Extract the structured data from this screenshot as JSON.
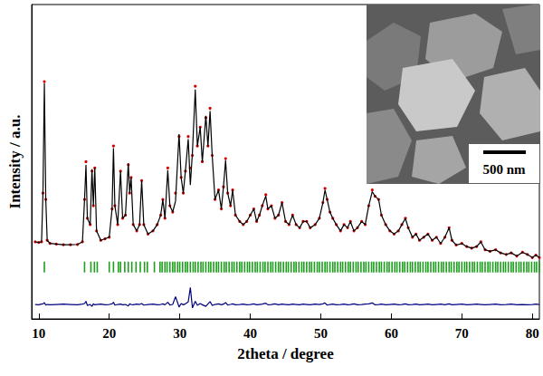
{
  "chart_data": {
    "type": "scatter",
    "xlabel": "2theta / degree",
    "ylabel": "Intensity / a.u.",
    "xlim": [
      9,
      81
    ],
    "xticks": [
      10,
      20,
      30,
      40,
      50,
      60,
      70,
      80
    ],
    "ylim": [
      0,
      100
    ],
    "tick_labels": "x",
    "grid": false,
    "annotations": [
      {
        "text": "500 nm"
      }
    ],
    "x": [
      9.5,
      10.0,
      10.4,
      10.6,
      10.8,
      11.0,
      11.2,
      11.6,
      12.5,
      13.5,
      14.5,
      15.5,
      16.2,
      16.5,
      16.7,
      16.9,
      17.3,
      17.55,
      17.75,
      17.95,
      18.2,
      18.8,
      19.4,
      20.0,
      20.4,
      20.6,
      20.8,
      21.2,
      21.6,
      21.9,
      22.3,
      22.7,
      22.9,
      23.1,
      23.4,
      23.9,
      24.3,
      24.6,
      24.9,
      25.5,
      26.2,
      26.8,
      27.3,
      27.6,
      27.9,
      28.3,
      28.6,
      29.0,
      29.4,
      29.9,
      30.2,
      30.5,
      30.8,
      31.2,
      31.5,
      31.8,
      32.2,
      32.5,
      32.9,
      33.2,
      33.7,
      34.0,
      34.3,
      34.6,
      35.0,
      35.5,
      35.9,
      36.2,
      36.5,
      36.8,
      37.2,
      37.5,
      37.9,
      38.5,
      39.0,
      39.5,
      40.0,
      40.5,
      40.9,
      41.3,
      41.7,
      42.2,
      42.5,
      43.0,
      43.5,
      44.0,
      44.5,
      45.0,
      45.5,
      46.0,
      46.5,
      47.0,
      47.5,
      48.0,
      48.5,
      49.2,
      49.8,
      50.3,
      50.6,
      50.9,
      51.3,
      51.7,
      52.2,
      52.8,
      53.3,
      53.8,
      54.2,
      54.7,
      55.2,
      55.8,
      56.3,
      56.8,
      57.3,
      57.7,
      58.2,
      58.6,
      59.2,
      59.8,
      60.4,
      61.0,
      61.5,
      62.0,
      62.4,
      63.0,
      63.5,
      64.0,
      64.6,
      65.2,
      65.8,
      66.4,
      67.0,
      67.6,
      68.2,
      68.6,
      69.2,
      70.0,
      70.7,
      71.4,
      72.1,
      72.7,
      73.3,
      74.0,
      74.8,
      75.5,
      76.3,
      77.0,
      77.8,
      78.6,
      79.3,
      80.0,
      80.5,
      81.0
    ],
    "series": [
      {
        "type": "scatter",
        "marker": "circle",
        "color": "#d40000",
        "values": [
          24.5,
          24.3,
          24.5,
          40,
          75.5,
          38,
          25,
          24,
          23.8,
          23.6,
          23.6,
          23.7,
          24.5,
          38,
          50,
          32,
          30,
          47,
          36,
          48,
          28,
          25,
          25.5,
          26,
          35,
          55,
          36,
          30,
          47,
          32,
          33,
          49,
          40,
          45,
          30,
          28,
          30,
          44,
          30,
          27,
          28,
          30,
          33,
          38,
          32,
          48,
          36,
          34,
          40,
          58,
          45,
          40,
          47,
          58,
          48,
          52,
          74,
          55,
          61,
          50,
          64,
          55,
          67,
          52,
          38,
          41,
          35,
          42,
          51,
          40,
          36,
          41,
          33,
          31,
          30,
          31,
          33,
          35,
          31,
          33,
          36,
          39.5,
          35,
          36,
          32,
          33,
          37,
          31,
          30,
          33,
          30,
          29,
          31,
          31,
          29,
          30,
          32,
          37,
          41.5,
          38,
          34,
          32,
          30,
          28,
          30,
          29,
          31,
          28,
          29,
          31,
          30,
          36,
          41,
          39,
          38,
          33,
          30,
          28,
          27,
          28,
          30,
          32,
          29,
          26,
          27,
          25,
          26,
          27,
          25,
          26,
          24,
          26,
          29,
          25,
          23.5,
          24,
          23,
          22.5,
          23,
          24.5,
          22,
          21.5,
          22,
          21,
          20.5,
          21,
          20,
          21.2,
          20.5,
          19.5,
          20.3,
          19.5
        ]
      },
      {
        "type": "line",
        "line_style": "solid",
        "color": "#000000",
        "values": [
          24.5,
          24.3,
          24.5,
          40,
          74.9,
          38,
          25,
          24,
          23.8,
          23.6,
          23.6,
          23.7,
          24.5,
          38,
          49,
          32,
          30,
          47.6,
          36,
          48,
          28,
          25,
          25.5,
          26,
          35,
          54.3,
          36,
          30,
          47,
          32,
          33,
          49.5,
          40,
          45,
          30,
          28,
          30,
          44,
          30,
          27,
          28,
          30,
          33,
          38,
          32,
          47.3,
          36,
          34,
          37.5,
          58.8,
          45,
          40,
          47,
          57.2,
          42.6,
          53.1,
          73,
          55,
          61,
          50,
          64.6,
          55,
          66.1,
          52,
          38,
          41,
          35,
          42,
          50.4,
          40,
          36,
          41,
          33,
          31,
          30,
          31,
          33,
          35,
          31,
          33,
          36,
          39.1,
          35,
          36,
          32,
          33,
          37,
          31,
          30,
          33,
          30,
          29,
          31,
          31,
          29,
          30,
          32,
          37,
          41,
          38,
          34,
          32,
          30,
          28,
          30,
          29,
          31,
          28,
          29,
          31,
          30,
          36,
          40.5,
          39,
          38,
          33,
          30,
          28,
          27,
          28,
          30,
          32,
          29,
          26,
          27,
          25,
          26,
          27,
          25,
          26,
          24,
          26,
          29,
          25,
          23.5,
          24,
          23,
          22.5,
          23,
          24.5,
          22,
          21.5,
          22,
          21,
          20.5,
          21,
          20,
          21.2,
          20.5,
          19.5,
          20.3,
          19.5
        ]
      },
      {
        "type": "scatter",
        "marker": "vline",
        "color": "#1e9e1e",
        "x": [
          10.8,
          16.5,
          17.4,
          17.9,
          18.3,
          20.0,
          20.6,
          21.3,
          21.6,
          22.2,
          22.7,
          23.2,
          23.8,
          24.4,
          25.0,
          25.4,
          26.4,
          27.2,
          27.5,
          27.9,
          28.2,
          28.6,
          29.0,
          29.3,
          29.7,
          30.0,
          30.4,
          30.8,
          31.1,
          31.5,
          31.9,
          32.2,
          32.6,
          33.0,
          33.3,
          33.7,
          34.1,
          34.4,
          34.8,
          35.2,
          35.5,
          35.9,
          36.3,
          36.6,
          37.0,
          37.4,
          37.7,
          38.1,
          38.5,
          38.8,
          39.2,
          39.6,
          39.9,
          40.3,
          40.7,
          41.0,
          41.4,
          41.8,
          42.1,
          42.5,
          42.9,
          43.2,
          43.6,
          44.0,
          44.3,
          44.7,
          45.1,
          45.4,
          45.8,
          46.2,
          46.5,
          46.9,
          47.3,
          47.6,
          48.0,
          48.4,
          48.7,
          49.1,
          49.5,
          49.8,
          50.2,
          50.6,
          50.9,
          51.3,
          51.7,
          52.0,
          52.4,
          52.8,
          53.1,
          53.5,
          53.9,
          54.2,
          54.6,
          55.0,
          55.3,
          55.7,
          56.1,
          56.4,
          56.8,
          57.2,
          57.5,
          57.9,
          58.3,
          58.6,
          59.0,
          59.4,
          59.7,
          60.1,
          60.5,
          60.8,
          61.2,
          61.6,
          61.9,
          62.3,
          62.7,
          63.0,
          63.4,
          63.8,
          64.1,
          64.5,
          64.9,
          65.2,
          65.6,
          66.0,
          66.3,
          66.7,
          67.1,
          67.4,
          67.8,
          68.2,
          68.5,
          68.9,
          69.3,
          69.6,
          70.0,
          70.4,
          70.7,
          71.1,
          71.5,
          71.8,
          72.2,
          72.6,
          72.9,
          73.3,
          73.7,
          74.0,
          74.4,
          74.8,
          75.1,
          75.5,
          75.9,
          76.2,
          76.6,
          77.0,
          77.3,
          77.7,
          78.1,
          78.4,
          78.8,
          79.2,
          79.5,
          79.9,
          80.3,
          80.6,
          81.0
        ],
        "values": [
          16.5,
          16.5,
          16.5,
          16.5,
          16.5,
          16.5,
          16.5,
          16.5,
          16.5,
          16.5,
          16.5,
          16.5,
          16.5,
          16.5,
          16.5,
          16.5,
          16.5,
          16.5,
          16.5,
          16.5,
          16.5,
          16.5,
          16.5,
          16.5,
          16.5,
          16.5,
          16.5,
          16.5,
          16.5,
          16.5,
          16.5,
          16.5,
          16.5,
          16.5,
          16.5,
          16.5,
          16.5,
          16.5,
          16.5,
          16.5,
          16.5,
          16.5,
          16.5,
          16.5,
          16.5,
          16.5,
          16.5,
          16.5,
          16.5,
          16.5,
          16.5,
          16.5,
          16.5,
          16.5,
          16.5,
          16.5,
          16.5,
          16.5,
          16.5,
          16.5,
          16.5,
          16.5,
          16.5,
          16.5,
          16.5,
          16.5,
          16.5,
          16.5,
          16.5,
          16.5,
          16.5,
          16.5,
          16.5,
          16.5,
          16.5,
          16.5,
          16.5,
          16.5,
          16.5,
          16.5,
          16.5,
          16.5,
          16.5,
          16.5,
          16.5,
          16.5,
          16.5,
          16.5,
          16.5,
          16.5,
          16.5,
          16.5,
          16.5,
          16.5,
          16.5,
          16.5,
          16.5,
          16.5,
          16.5,
          16.5,
          16.5,
          16.5,
          16.5,
          16.5,
          16.5,
          16.5,
          16.5,
          16.5,
          16.5,
          16.5,
          16.5,
          16.5,
          16.5,
          16.5,
          16.5,
          16.5,
          16.5,
          16.5,
          16.5,
          16.5,
          16.5,
          16.5,
          16.5,
          16.5,
          16.5,
          16.5,
          16.5,
          16.5,
          16.5,
          16.5,
          16.5,
          16.5,
          16.5,
          16.5,
          16.5,
          16.5,
          16.5,
          16.5,
          16.5,
          16.5,
          16.5,
          16.5,
          16.5,
          16.5,
          16.5,
          16.5,
          16.5,
          16.5,
          16.5,
          16.5,
          16.5,
          16.5,
          16.5,
          16.5,
          16.5,
          16.5,
          16.5,
          16.5,
          16.5,
          16.5,
          16.5,
          16.5,
          16.5,
          16.5,
          16.5
        ]
      },
      {
        "type": "line",
        "line_style": "solid",
        "color": "#000080",
        "values": [
          4.6,
          4.5,
          4.7,
          4.8,
          5.2,
          4.4,
          4.6,
          4.5,
          4.6,
          4.7,
          4.6,
          4.5,
          4.7,
          4.9,
          5.6,
          4.3,
          4.6,
          4.0,
          4.8,
          4.5,
          4.6,
          4.7,
          4.5,
          4.6,
          4.8,
          5.3,
          4.4,
          4.6,
          4.7,
          4.5,
          4.6,
          4.1,
          4.8,
          4.6,
          4.5,
          4.7,
          4.6,
          4.9,
          4.4,
          4.6,
          4.7,
          4.5,
          4.6,
          4.8,
          4.5,
          5.3,
          4.4,
          4.6,
          7.1,
          3.8,
          4.9,
          4.5,
          4.8,
          5.4,
          10.0,
          3.5,
          5.6,
          4.3,
          4.9,
          4.5,
          4.0,
          4.8,
          5.5,
          4.3,
          4.6,
          4.8,
          4.5,
          4.7,
          5.2,
          4.4,
          4.6,
          4.8,
          4.5,
          4.6,
          4.7,
          4.5,
          4.6,
          4.8,
          4.5,
          4.6,
          4.7,
          5.0,
          4.5,
          4.6,
          4.8,
          4.5,
          4.7,
          4.6,
          4.5,
          4.7,
          4.6,
          4.5,
          4.7,
          4.6,
          4.5,
          4.7,
          4.6,
          4.8,
          5.1,
          4.4,
          4.6,
          4.7,
          4.5,
          4.6,
          4.7,
          4.5,
          4.6,
          4.8,
          4.5,
          4.6,
          4.7,
          4.8,
          5.1,
          4.5,
          4.6,
          4.7,
          4.5,
          4.6,
          4.7,
          4.5,
          4.6,
          4.8,
          4.5,
          4.6,
          4.7,
          4.5,
          4.6,
          4.7,
          4.5,
          4.6,
          4.7,
          4.5,
          4.8,
          4.5,
          4.6,
          4.7,
          4.5,
          4.6,
          4.7,
          4.6,
          4.5,
          4.6,
          4.7,
          4.5,
          4.6,
          4.7,
          4.5,
          4.6,
          4.5,
          4.6,
          4.7,
          4.6
        ]
      }
    ]
  }
}
